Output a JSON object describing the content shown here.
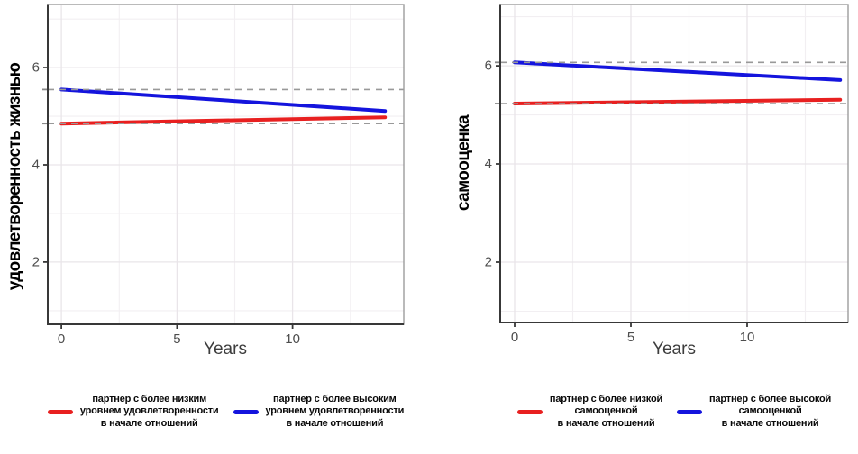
{
  "page": {
    "background": "#ffffff"
  },
  "colors": {
    "red": "#e82020",
    "blue": "#1414dd",
    "ref_dash": "#999999",
    "ref_tick": "#8a8a8a",
    "axis": "#383838",
    "panel_border": "#9c9c9c",
    "tick_label": "#4d4d4d",
    "grid_major": "#e9e5e9",
    "grid_minor": "#f2eff2"
  },
  "chart_data": [
    {
      "type": "line",
      "title": "",
      "ylabel": "удовлетворенность жизнью",
      "xlabel": "Years",
      "x_ticks": [
        0,
        5,
        10
      ],
      "x_minor_ticks": [
        2.5,
        7.5,
        12.5
      ],
      "y_ticks": [
        2,
        4,
        6
      ],
      "y_minor_ticks": [
        1,
        3,
        5,
        7
      ],
      "xlim": [
        -0.59,
        14.81
      ],
      "ylim": [
        0.72,
        7.3
      ],
      "grid": true,
      "legend_position": "bottom",
      "ref_line_style": "dashed",
      "series": [
        {
          "name": "партнер с более низким уровнем удовлетворенности в начале отношений",
          "color": "#e82020",
          "x": [
            0,
            14
          ],
          "y": [
            4.85,
            4.98
          ],
          "baseline_ref": 4.85
        },
        {
          "name": "партнер с более высоким уровнем удовлетворенности в начале отношений",
          "color": "#1414dd",
          "x": [
            0,
            14
          ],
          "y": [
            5.55,
            5.11
          ],
          "baseline_ref": 5.55
        }
      ],
      "legend": [
        {
          "lines": [
            "партнер с более низким",
            "уровнем удовлетворенности",
            "в начале отношений"
          ]
        },
        {
          "lines": [
            "партнер с более высоким",
            "уровнем удовлетворенности",
            "в начале отношений"
          ]
        }
      ]
    },
    {
      "type": "line",
      "title": "",
      "ylabel": "самооценка",
      "xlabel": "Years",
      "x_ticks": [
        0,
        5,
        10
      ],
      "x_minor_ticks": [
        2.5,
        7.5,
        12.5
      ],
      "y_ticks": [
        2,
        4,
        6
      ],
      "y_minor_ticks": [
        1,
        3,
        5,
        7
      ],
      "xlim": [
        -0.62,
        14.34
      ],
      "ylim": [
        0.77,
        7.25
      ],
      "grid": true,
      "legend_position": "bottom",
      "ref_line_style": "dashed",
      "series": [
        {
          "name": "партнер с более низкой самооценкой в начале отношений",
          "color": "#e82020",
          "x": [
            0,
            14
          ],
          "y": [
            5.23,
            5.31
          ],
          "baseline_ref": 5.23
        },
        {
          "name": "партнер с более высокой самооценкой в начале отношений",
          "color": "#1414dd",
          "x": [
            0,
            14
          ],
          "y": [
            6.07,
            5.71
          ],
          "baseline_ref": 6.07
        }
      ],
      "legend": [
        {
          "lines": [
            "партнер с более низкой",
            "самооценкой",
            "в начале отношений"
          ]
        },
        {
          "lines": [
            "партнер с более высокой",
            "самооценкой",
            "в начале отношений"
          ]
        }
      ]
    }
  ]
}
